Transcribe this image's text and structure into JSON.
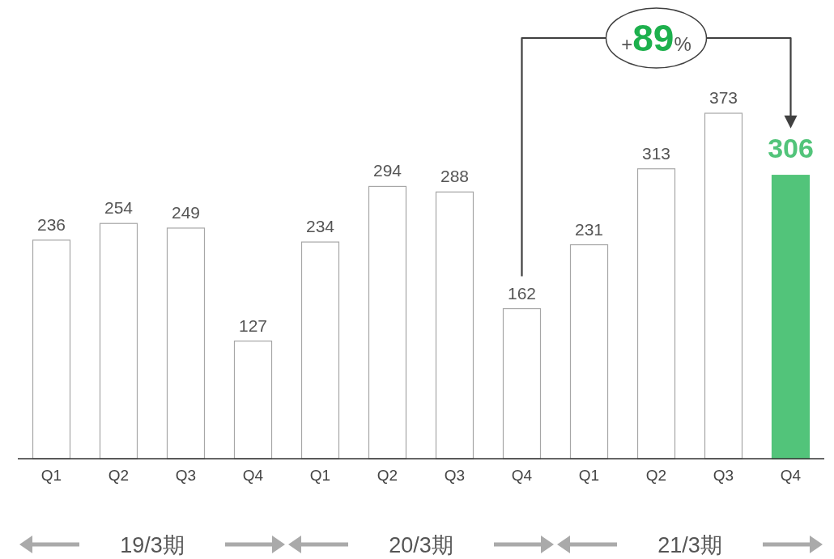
{
  "chart_data": {
    "type": "bar",
    "categories": [
      "Q1",
      "Q2",
      "Q3",
      "Q4",
      "Q1",
      "Q2",
      "Q3",
      "Q4",
      "Q1",
      "Q2",
      "Q3",
      "Q4"
    ],
    "values": [
      236,
      254,
      249,
      127,
      234,
      294,
      288,
      162,
      231,
      313,
      373,
      306
    ],
    "colors": [
      "#ffffff",
      "#ffffff",
      "#ffffff",
      "#ffffff",
      "#ffffff",
      "#ffffff",
      "#ffffff",
      "#ffffff",
      "#ffffff",
      "#ffffff",
      "#ffffff",
      "#52c47a"
    ],
    "data_labels": true,
    "annotations": [
      "+89%",
      "19/3期",
      "20/3期",
      "21/3期"
    ]
  }
}
